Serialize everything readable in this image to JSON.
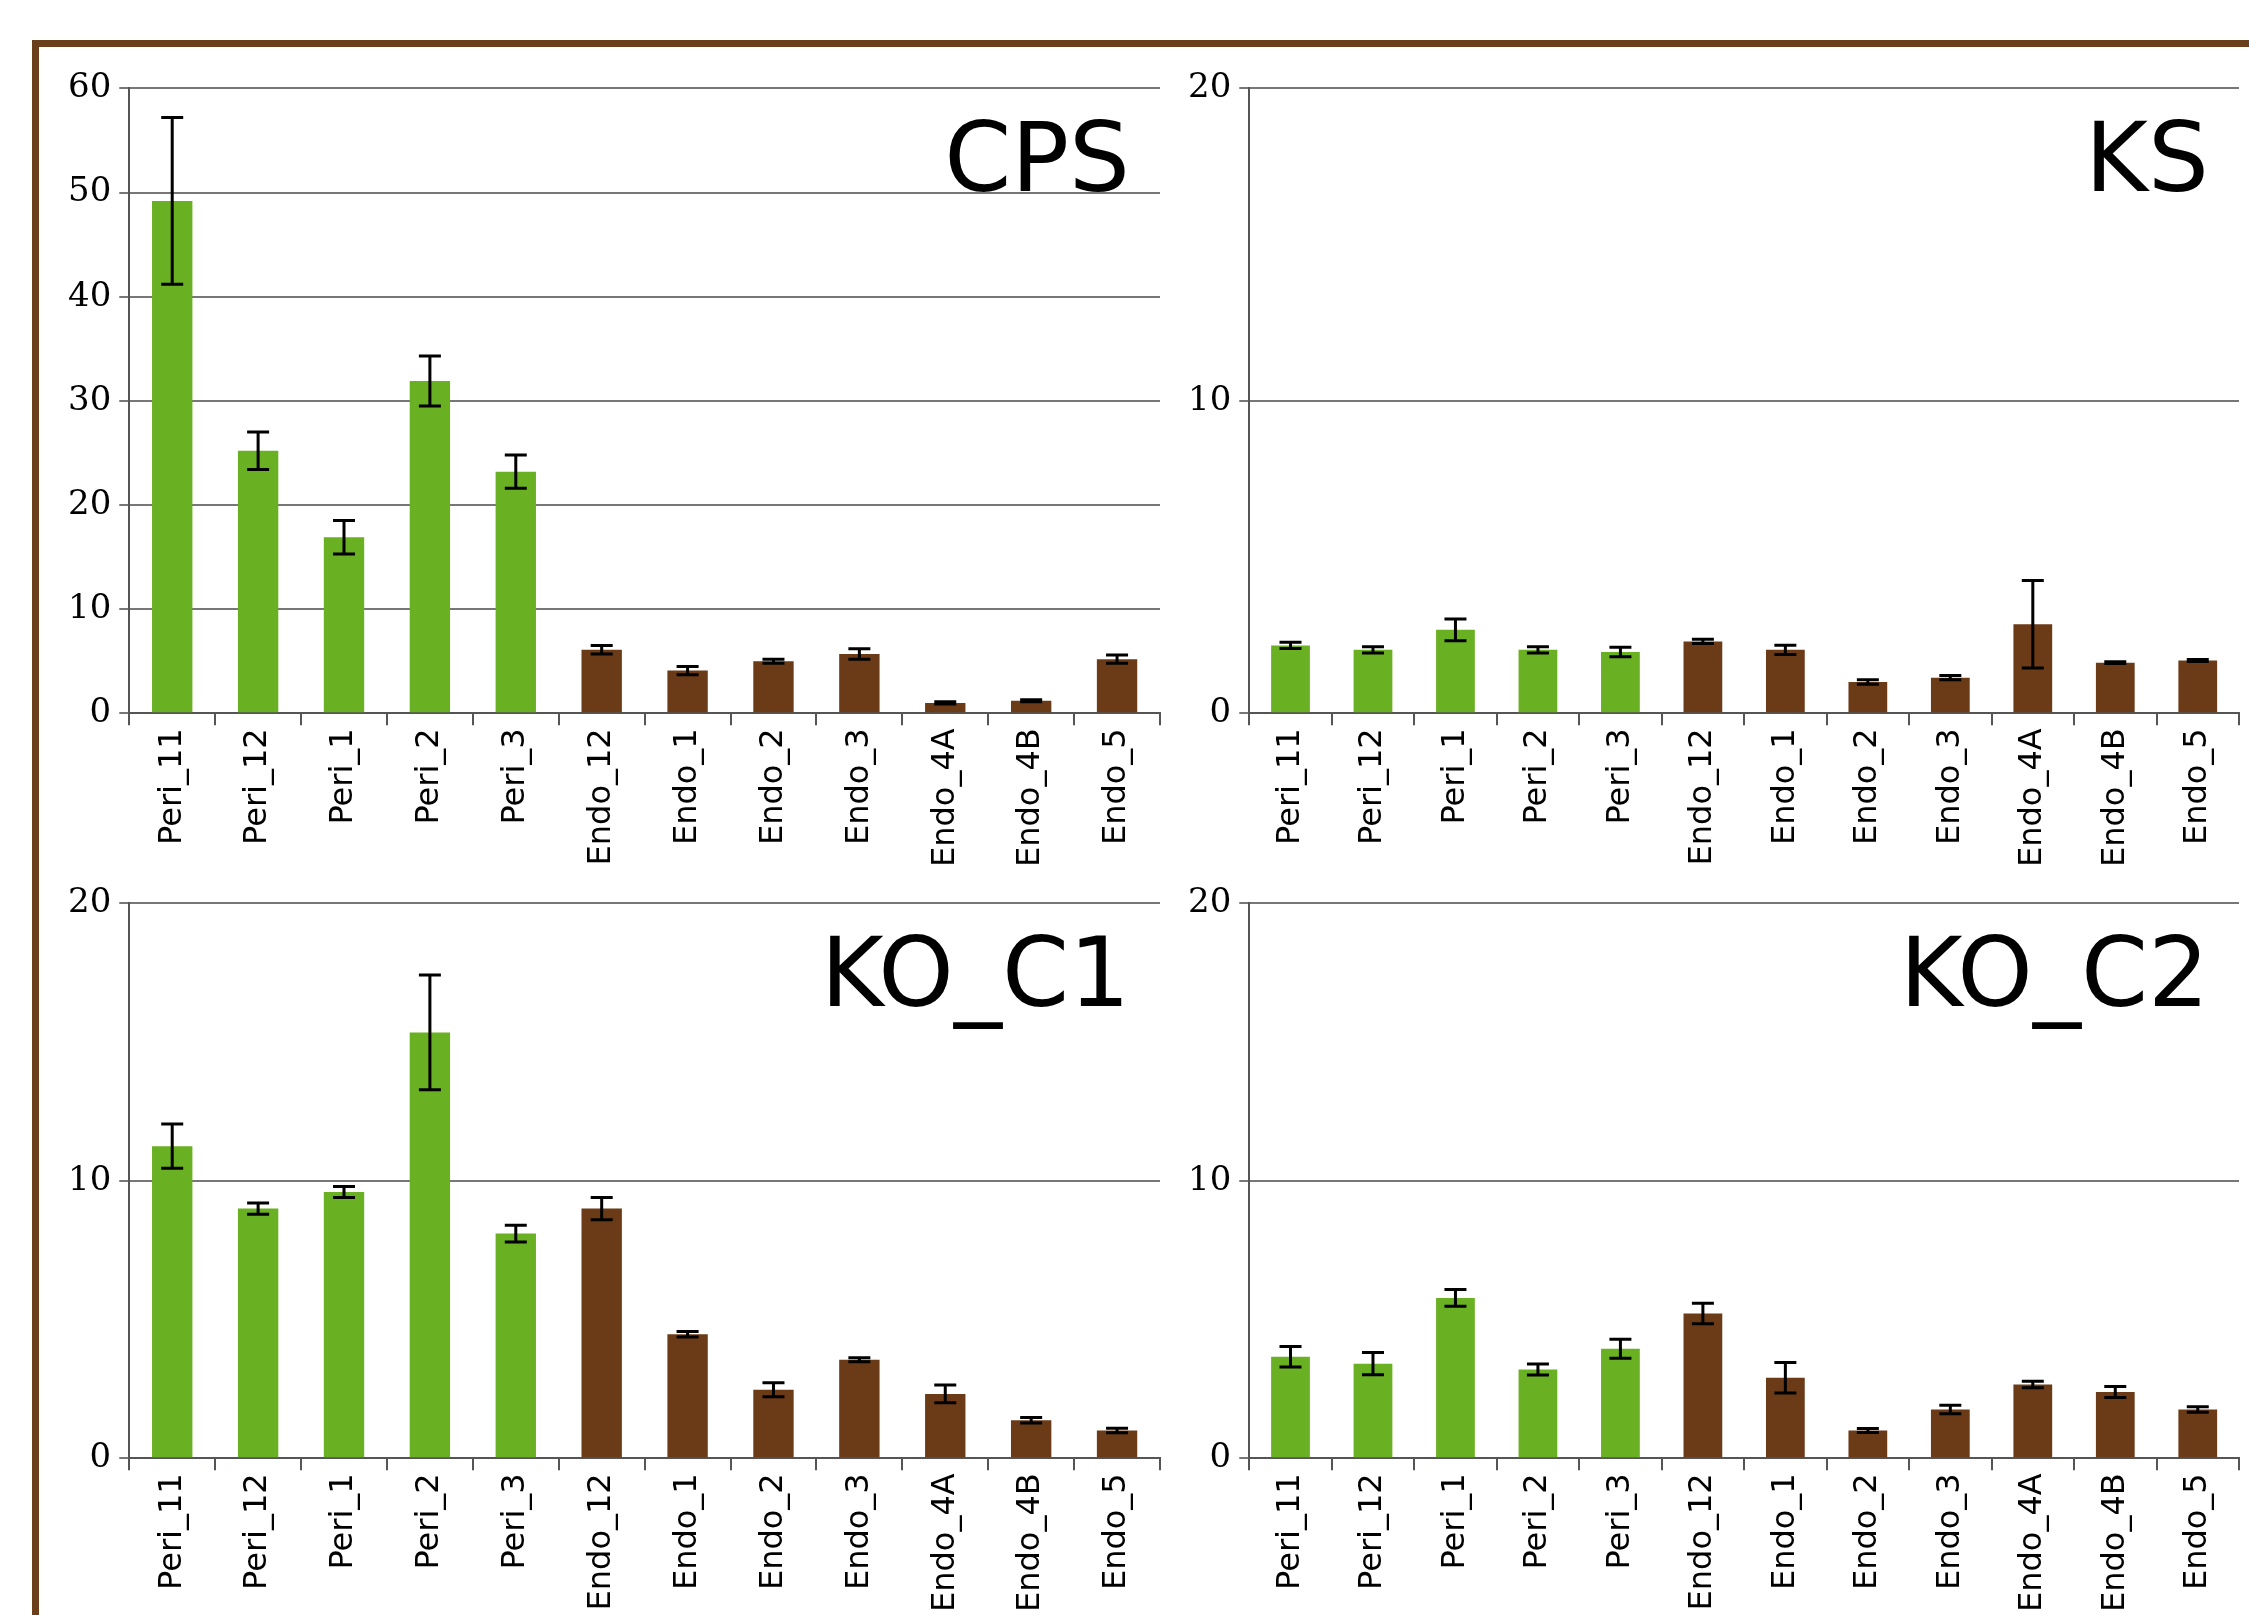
{
  "chart_data": [
    {
      "type": "bar",
      "title": "CPS",
      "categories": [
        "Peri_11",
        "Peri_12",
        "Peri_1",
        "Peri_2",
        "Peri_3",
        "Endo_12",
        "Endo_1",
        "Endo_2",
        "Endo_3",
        "Endo_4A",
        "Endo_4B",
        "Endo_5"
      ],
      "values": [
        49.2,
        25.2,
        16.9,
        31.9,
        23.2,
        6.1,
        4.1,
        5.0,
        5.7,
        1.0,
        1.2,
        5.2
      ],
      "errors": [
        8,
        1.8,
        1.6,
        2.4,
        1.6,
        0.4,
        0.4,
        0.2,
        0.5,
        0.1,
        0.1,
        0.4
      ],
      "colors": [
        "#6ab023",
        "#6ab023",
        "#6ab023",
        "#6ab023",
        "#6ab023",
        "#6b3a17",
        "#6b3a17",
        "#6b3a17",
        "#6b3a17",
        "#6b3a17",
        "#6b3a17",
        "#6b3a17"
      ],
      "ylim": [
        0,
        60
      ],
      "yticks": [
        0,
        10,
        20,
        30,
        40,
        50,
        60
      ],
      "grid": "y"
    },
    {
      "type": "bar",
      "title": "KS",
      "categories": [
        "Peri_11",
        "Peri_12",
        "Peri_1",
        "Peri_2",
        "Peri_3",
        "Endo_12",
        "Endo_1",
        "Endo_2",
        "Endo_3",
        "Endo_4A",
        "Endo_4B",
        "Endo_5"
      ],
      "values": [
        2.17,
        2.03,
        2.67,
        2.03,
        1.96,
        2.3,
        2.03,
        1.0,
        1.14,
        2.85,
        1.62,
        1.69
      ],
      "errors": [
        0.1,
        0.1,
        0.35,
        0.1,
        0.15,
        0.07,
        0.15,
        0.07,
        0.07,
        1.4,
        0.03,
        0.03
      ],
      "colors": [
        "#6ab023",
        "#6ab023",
        "#6ab023",
        "#6ab023",
        "#6ab023",
        "#6b3a17",
        "#6b3a17",
        "#6b3a17",
        "#6b3a17",
        "#6b3a17",
        "#6b3a17",
        "#6b3a17"
      ],
      "ylim": [
        0,
        20
      ],
      "yticks": [
        0,
        10,
        20
      ],
      "grid": "y"
    },
    {
      "type": "bar",
      "title": "KO_C1",
      "categories": [
        "Peri_11",
        "Peri_12",
        "Peri_1",
        "Peri_2",
        "Peri_3",
        "Endo_12",
        "Endo_1",
        "Endo_2",
        "Endo_3",
        "Endo_4A",
        "Endo_4B",
        "Endo_5"
      ],
      "values": [
        11.25,
        9.0,
        9.6,
        15.35,
        8.1,
        9.0,
        4.47,
        2.47,
        3.55,
        2.32,
        1.37,
        1.0
      ],
      "errors": [
        0.8,
        0.2,
        0.2,
        2.07,
        0.3,
        0.4,
        0.1,
        0.25,
        0.07,
        0.32,
        0.1,
        0.08
      ],
      "colors": [
        "#6ab023",
        "#6ab023",
        "#6ab023",
        "#6ab023",
        "#6ab023",
        "#6b3a17",
        "#6b3a17",
        "#6b3a17",
        "#6b3a17",
        "#6b3a17",
        "#6b3a17",
        "#6b3a17"
      ],
      "ylim": [
        0,
        20
      ],
      "yticks": [
        0,
        10,
        20
      ],
      "grid": "y"
    },
    {
      "type": "bar",
      "title": "KO_C2",
      "categories": [
        "Peri_11",
        "Peri_12",
        "Peri_1",
        "Peri_2",
        "Peri_3",
        "Endo_12",
        "Endo_1",
        "Endo_2",
        "Endo_3",
        "Endo_4A",
        "Endo_4B",
        "Endo_5"
      ],
      "values": [
        3.66,
        3.41,
        5.78,
        3.2,
        3.95,
        5.22,
        2.9,
        1.0,
        1.76,
        2.66,
        2.39,
        1.76
      ],
      "errors": [
        0.37,
        0.4,
        0.3,
        0.2,
        0.34,
        0.37,
        0.55,
        0.07,
        0.15,
        0.12,
        0.2,
        0.1
      ],
      "colors": [
        "#6ab023",
        "#6ab023",
        "#6ab023",
        "#6ab023",
        "#6ab023",
        "#6b3a17",
        "#6b3a17",
        "#6b3a17",
        "#6b3a17",
        "#6b3a17",
        "#6b3a17",
        "#6b3a17"
      ],
      "ylim": [
        0,
        20
      ],
      "yticks": [
        0,
        10,
        20
      ],
      "grid": "y"
    }
  ]
}
